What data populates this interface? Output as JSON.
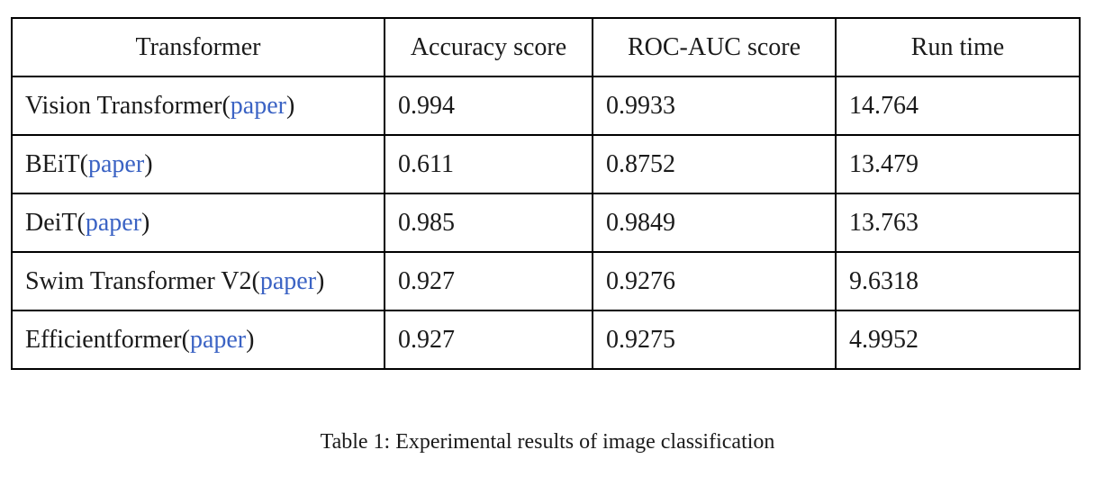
{
  "partial_text_above": "",
  "table": {
    "headers": [
      "Transformer",
      "Accuracy score",
      "ROC-AUC score",
      "Run time"
    ],
    "rows": [
      {
        "name": "Vision Transformer",
        "link": "paper",
        "accuracy": "0.994",
        "roc_auc": "0.9933",
        "run_time": "14.764"
      },
      {
        "name": "BEiT",
        "link": "paper",
        "accuracy": "0.611",
        "roc_auc": "0.8752",
        "run_time": "13.479"
      },
      {
        "name": "DeiT",
        "link": "paper",
        "accuracy": "0.985",
        "roc_auc": "0.9849",
        "run_time": "13.763"
      },
      {
        "name": "Swim Transformer V2",
        "link": "paper",
        "accuracy": "0.927",
        "roc_auc": "0.9276",
        "run_time": "9.6318"
      },
      {
        "name": "Efficientformer",
        "link": "paper",
        "accuracy": "0.927",
        "roc_auc": "0.9275",
        "run_time": "4.9952"
      }
    ]
  },
  "caption": "Table 1: Experimental results of image classification",
  "colors": {
    "link": "#3b63c4",
    "border": "#000000",
    "text": "#1a1a1a"
  }
}
